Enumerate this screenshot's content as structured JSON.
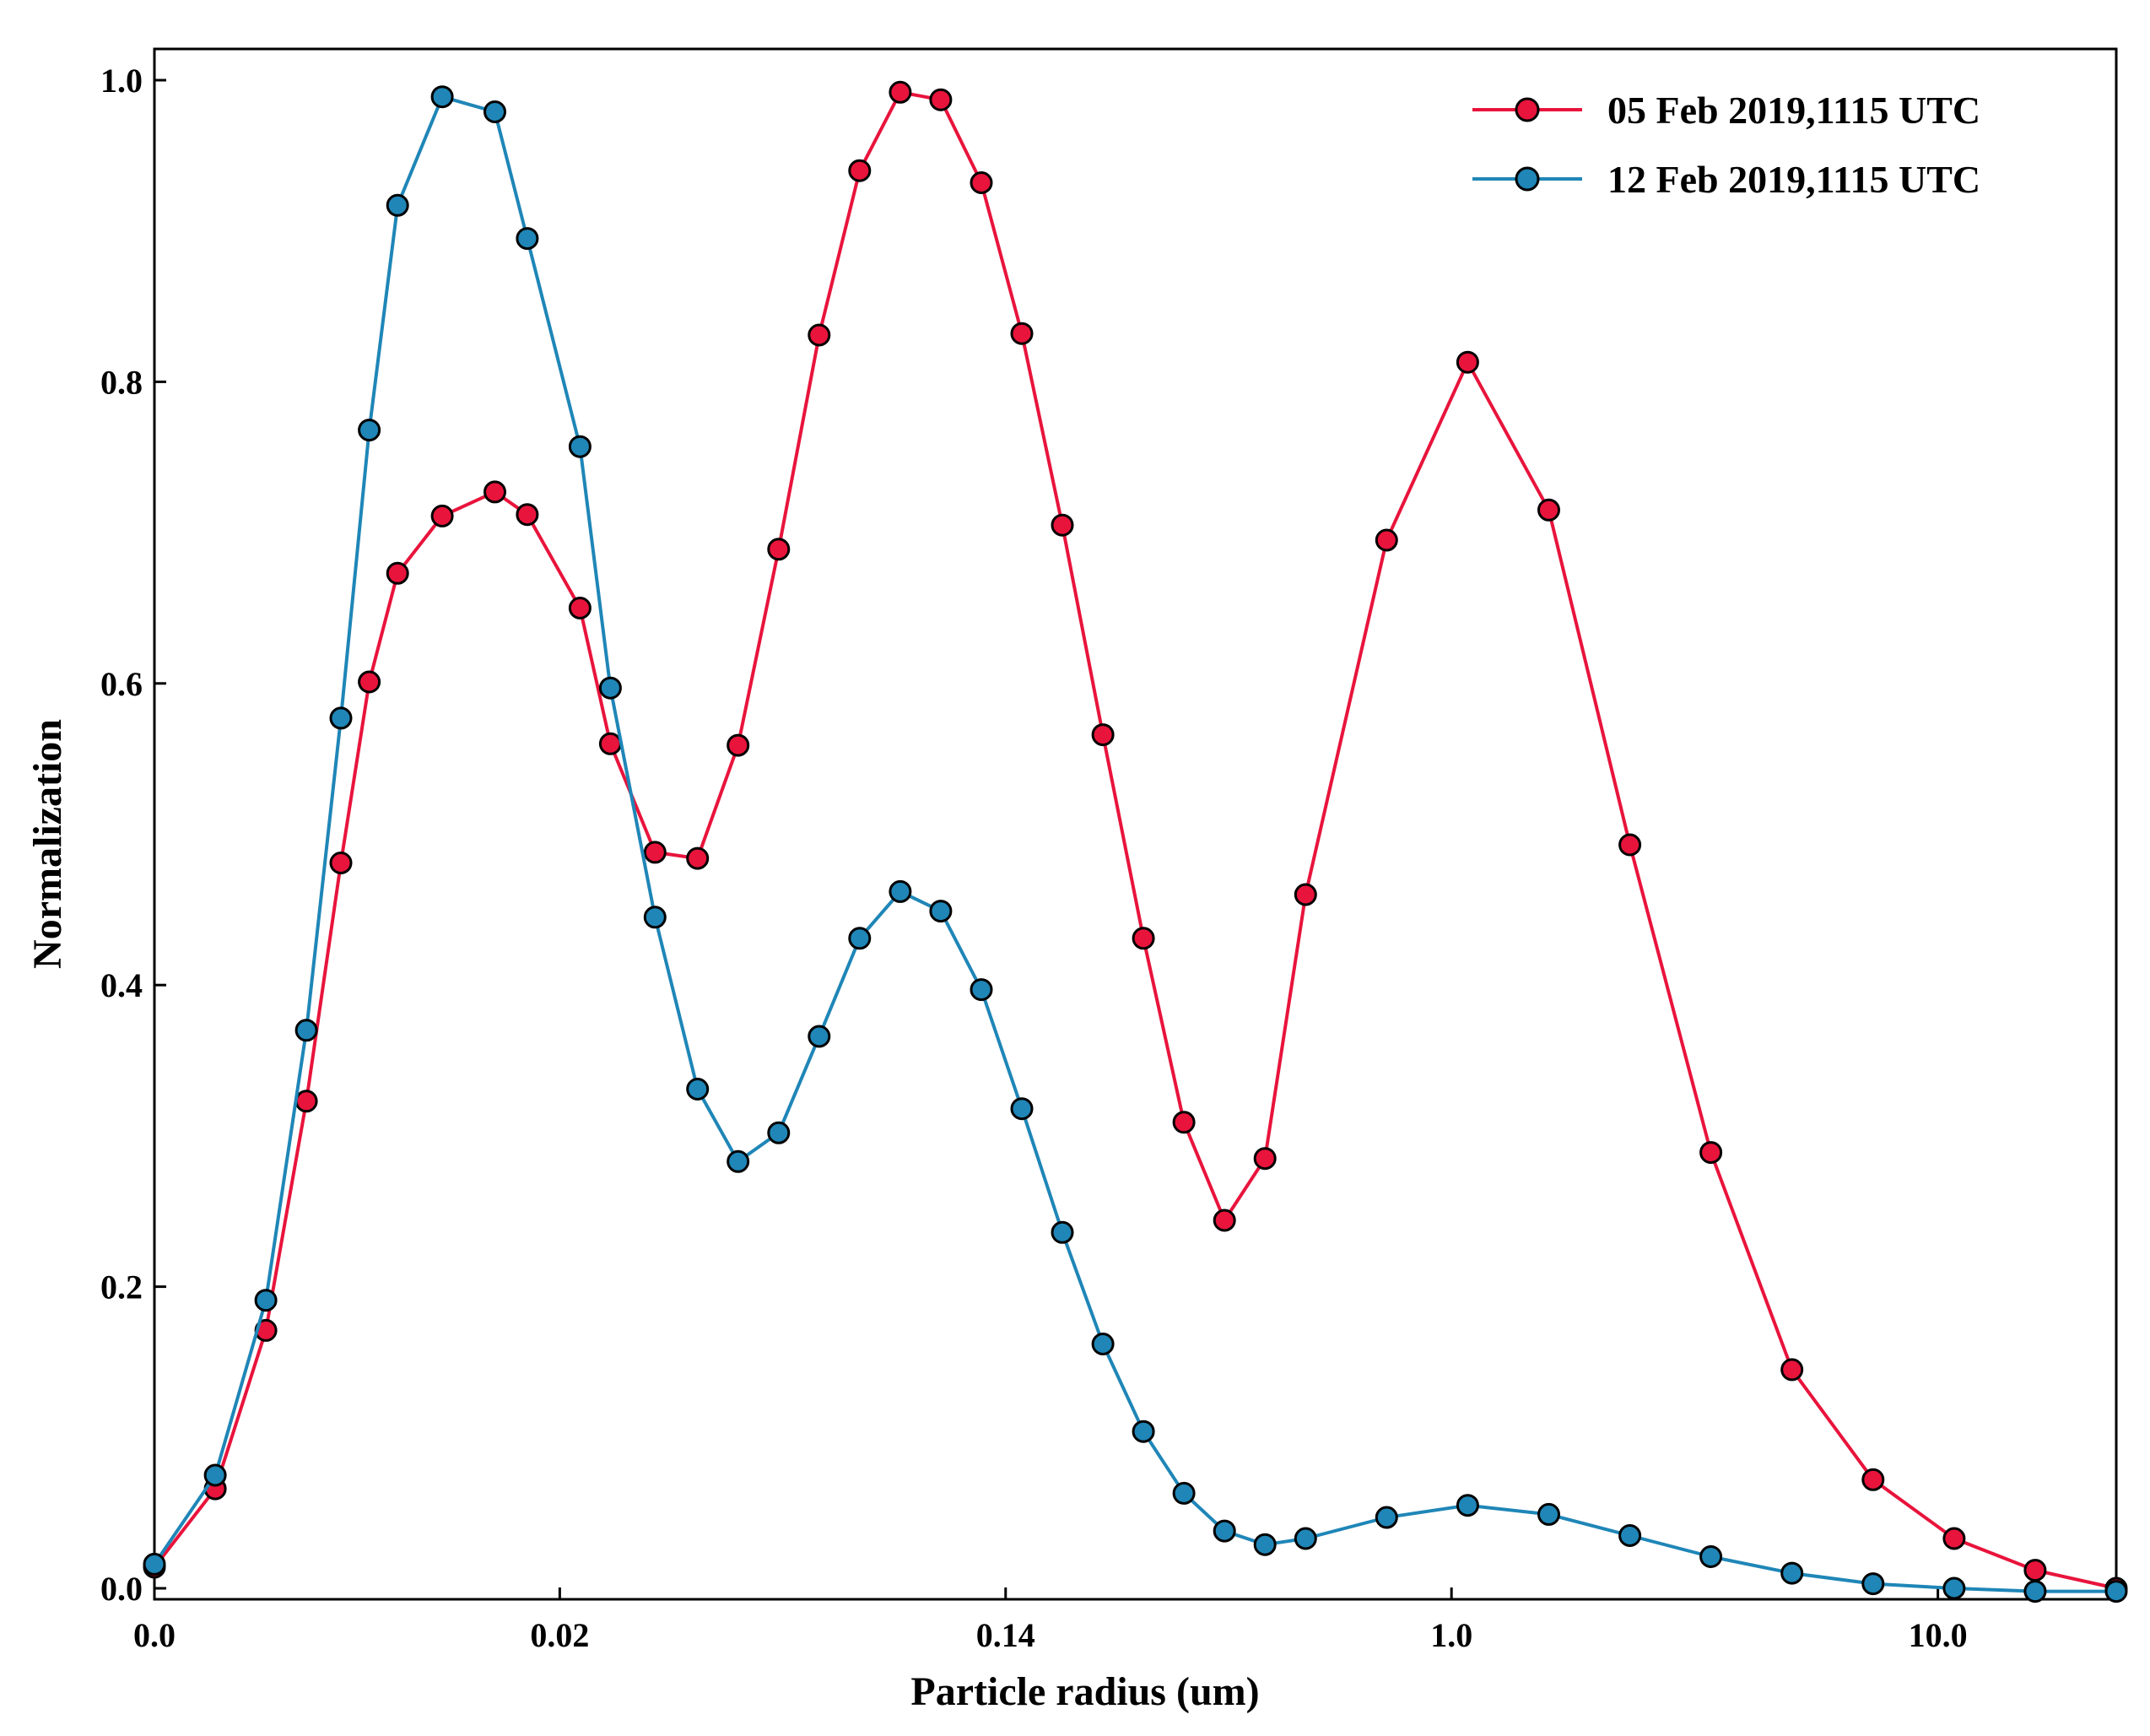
{
  "chart_data": {
    "type": "line",
    "title": "",
    "xlabel": "Particle radius (um)",
    "ylabel": "Normalization",
    "x_scale": "log",
    "xlim": [
      0.0,
      24.8
    ],
    "ylim": [
      0.0,
      1.0
    ],
    "x_ticks": [
      {
        "label": "0.0",
        "index": 0
      },
      {
        "label": "0.02",
        "index": 10
      },
      {
        "label": "0.14",
        "index": 21
      },
      {
        "label": "1.0",
        "index": 32
      },
      {
        "label": "10.0",
        "index": 44
      }
    ],
    "y_ticks": [
      "0.0",
      "0.2",
      "0.4",
      "0.6",
      "0.8",
      "1.0"
    ],
    "grid": false,
    "legend_position": "top-right",
    "note_x": "x positions given as index along logarithmic radius axis; tick labels as printed",
    "series": [
      {
        "name": "05 Feb 2019,1115 UTC",
        "color": "#e8143c",
        "x_index": [
          0,
          1.5,
          2.75,
          3.75,
          4.6,
          5.3,
          6.0,
          7.1,
          8.4,
          9.2,
          10.5,
          11.25,
          12.35,
          13.4,
          14.4,
          15.4,
          16.4,
          17.4,
          18.4,
          19.4,
          20.4,
          21.4,
          22.4,
          23.4,
          24.4,
          25.4,
          26.4,
          27.4,
          28.4,
          30.4,
          32.4,
          34.4,
          36.4,
          38.4,
          40.4,
          42.4,
          44.4,
          46.4,
          48.4
        ],
        "values": [
          0.014,
          0.066,
          0.171,
          0.323,
          0.481,
          0.601,
          0.673,
          0.711,
          0.727,
          0.712,
          0.65,
          0.56,
          0.488,
          0.484,
          0.559,
          0.689,
          0.831,
          0.94,
          0.992,
          0.987,
          0.932,
          0.832,
          0.705,
          0.566,
          0.431,
          0.309,
          0.244,
          0.285,
          0.46,
          0.695,
          0.813,
          0.715,
          0.493,
          0.289,
          0.145,
          0.072,
          0.033,
          0.012,
          0.0
        ]
      },
      {
        "name": "12 Feb 2019,1115 UTC",
        "color": "#1f86b7",
        "x_index": [
          0,
          1.5,
          2.75,
          3.75,
          4.6,
          5.3,
          6.0,
          7.1,
          8.4,
          9.2,
          10.5,
          11.25,
          12.35,
          13.4,
          14.4,
          15.4,
          16.4,
          17.4,
          18.4,
          19.4,
          20.4,
          21.4,
          22.4,
          23.4,
          24.4,
          25.4,
          26.4,
          27.4,
          28.4,
          30.4,
          32.4,
          34.4,
          36.4,
          38.4,
          40.4,
          42.4,
          44.4,
          46.4,
          48.4
        ],
        "values": [
          0.016,
          0.075,
          0.191,
          0.37,
          0.577,
          0.768,
          0.917,
          0.989,
          0.979,
          0.895,
          0.757,
          0.597,
          0.445,
          0.331,
          0.283,
          0.302,
          0.366,
          0.431,
          0.462,
          0.449,
          0.397,
          0.318,
          0.236,
          0.162,
          0.104,
          0.063,
          0.038,
          0.029,
          0.033,
          0.047,
          0.055,
          0.049,
          0.035,
          0.021,
          0.01,
          0.003,
          0.0,
          -0.002,
          -0.002
        ]
      }
    ]
  }
}
